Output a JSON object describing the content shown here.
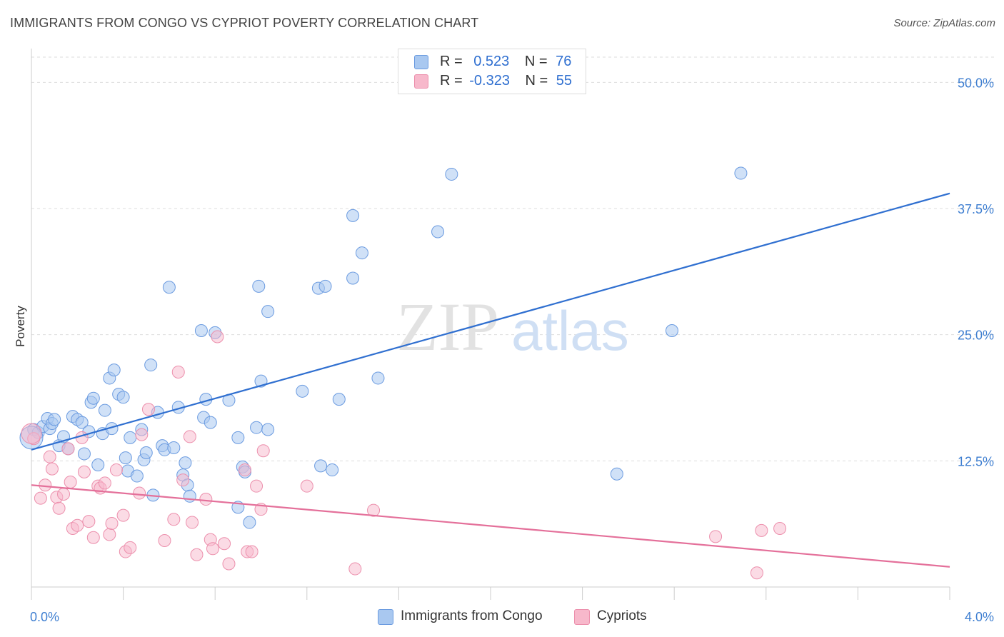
{
  "title": "IMMIGRANTS FROM CONGO VS CYPRIOT POVERTY CORRELATION CHART",
  "source": "Source: ZipAtlas.com",
  "watermark": {
    "zip": "ZIP",
    "atlas": "atlas"
  },
  "legend": {
    "rows": [
      {
        "r_label": "R =",
        "r_value": "0.523",
        "n_label": "N =",
        "n_value": "76"
      },
      {
        "r_label": "R =",
        "r_value": "-0.323",
        "n_label": "N =",
        "n_value": "55"
      }
    ]
  },
  "bottom_legend": {
    "series1": "Immigrants from Congo",
    "series2": "Cypriots"
  },
  "colors": {
    "congo_fill": "#a9c8f0",
    "congo_stroke": "#6b9be0",
    "congo_line": "#2f6fd0",
    "cypriot_fill": "#f7b8cb",
    "cypriot_stroke": "#ec8fac",
    "cypriot_line": "#e4709a",
    "tick_text": "#3f7fd1",
    "grid": "#dddddd"
  },
  "chart_data": {
    "type": "scatter",
    "title": "IMMIGRANTS FROM CONGO VS CYPRIOT POVERTY CORRELATION CHART",
    "xlabel": "",
    "ylabel": "Poverty",
    "xlim": [
      0,
      4.0
    ],
    "ylim": [
      0,
      52.5
    ],
    "x_tick_labels": [
      "0.0%",
      "4.0%"
    ],
    "y_ticks": [
      12.5,
      25.0,
      37.5,
      50.0
    ],
    "y_tick_labels": [
      "12.5%",
      "25.0%",
      "37.5%",
      "50.0%"
    ],
    "grid": "horizontal dashed",
    "legend_placement": "top-center and bottom",
    "series": [
      {
        "name": "Immigrants from Congo",
        "r": 0.523,
        "n": 76,
        "trend": [
          [
            0.0,
            13.6
          ],
          [
            4.0,
            39.0
          ]
        ],
        "points": [
          [
            0.01,
            15.6
          ],
          [
            0.03,
            15.3
          ],
          [
            0.05,
            15.9
          ],
          [
            0.07,
            16.7
          ],
          [
            0.08,
            15.7
          ],
          [
            0.09,
            16.2
          ],
          [
            0.1,
            16.6
          ],
          [
            0.12,
            14.0
          ],
          [
            0.14,
            14.9
          ],
          [
            0.16,
            13.7
          ],
          [
            0.18,
            16.9
          ],
          [
            0.2,
            16.6
          ],
          [
            0.22,
            16.3
          ],
          [
            0.23,
            13.2
          ],
          [
            0.25,
            15.4
          ],
          [
            0.26,
            18.3
          ],
          [
            0.27,
            18.7
          ],
          [
            0.29,
            12.1
          ],
          [
            0.31,
            15.2
          ],
          [
            0.32,
            17.5
          ],
          [
            0.34,
            20.7
          ],
          [
            0.35,
            15.7
          ],
          [
            0.36,
            21.5
          ],
          [
            0.38,
            19.1
          ],
          [
            0.4,
            18.8
          ],
          [
            0.41,
            12.8
          ],
          [
            0.42,
            11.5
          ],
          [
            0.43,
            14.8
          ],
          [
            0.46,
            11.0
          ],
          [
            0.48,
            15.6
          ],
          [
            0.49,
            12.6
          ],
          [
            0.5,
            13.3
          ],
          [
            0.52,
            22.0
          ],
          [
            0.53,
            9.1
          ],
          [
            0.55,
            17.3
          ],
          [
            0.57,
            14.0
          ],
          [
            0.58,
            13.6
          ],
          [
            0.6,
            29.7
          ],
          [
            0.62,
            13.8
          ],
          [
            0.64,
            17.8
          ],
          [
            0.66,
            11.1
          ],
          [
            0.67,
            12.3
          ],
          [
            0.68,
            10.1
          ],
          [
            0.69,
            9.0
          ],
          [
            0.74,
            25.4
          ],
          [
            0.75,
            16.8
          ],
          [
            0.76,
            18.6
          ],
          [
            0.78,
            16.3
          ],
          [
            0.8,
            25.2
          ],
          [
            0.86,
            18.5
          ],
          [
            0.9,
            14.8
          ],
          [
            0.9,
            7.9
          ],
          [
            0.92,
            11.9
          ],
          [
            0.93,
            11.4
          ],
          [
            0.95,
            6.4
          ],
          [
            0.98,
            15.8
          ],
          [
            0.99,
            29.8
          ],
          [
            1.0,
            20.4
          ],
          [
            1.03,
            15.6
          ],
          [
            1.03,
            27.3
          ],
          [
            1.18,
            19.4
          ],
          [
            1.25,
            29.6
          ],
          [
            1.28,
            29.8
          ],
          [
            1.26,
            12.0
          ],
          [
            1.31,
            11.6
          ],
          [
            1.34,
            18.6
          ],
          [
            1.4,
            30.6
          ],
          [
            1.4,
            36.8
          ],
          [
            1.44,
            33.1
          ],
          [
            1.51,
            20.7
          ],
          [
            1.77,
            35.2
          ],
          [
            1.83,
            40.9
          ],
          [
            2.55,
            11.2
          ],
          [
            2.79,
            25.4
          ],
          [
            3.09,
            41.0
          ],
          [
            0.0,
            14.8
          ]
        ]
      },
      {
        "name": "Cypriots",
        "r": -0.323,
        "n": 55,
        "trend": [
          [
            0.0,
            10.1
          ],
          [
            4.0,
            2.0
          ]
        ],
        "points": [
          [
            0.01,
            14.7
          ],
          [
            0.04,
            8.8
          ],
          [
            0.06,
            10.1
          ],
          [
            0.08,
            12.9
          ],
          [
            0.09,
            11.7
          ],
          [
            0.11,
            8.9
          ],
          [
            0.12,
            7.8
          ],
          [
            0.14,
            9.2
          ],
          [
            0.16,
            13.7
          ],
          [
            0.17,
            10.4
          ],
          [
            0.18,
            5.8
          ],
          [
            0.2,
            6.1
          ],
          [
            0.22,
            14.8
          ],
          [
            0.23,
            11.4
          ],
          [
            0.25,
            6.5
          ],
          [
            0.27,
            4.9
          ],
          [
            0.29,
            10.0
          ],
          [
            0.3,
            9.8
          ],
          [
            0.32,
            10.3
          ],
          [
            0.34,
            5.2
          ],
          [
            0.35,
            6.3
          ],
          [
            0.37,
            11.6
          ],
          [
            0.4,
            7.1
          ],
          [
            0.41,
            3.5
          ],
          [
            0.43,
            3.9
          ],
          [
            0.47,
            9.3
          ],
          [
            0.48,
            15.1
          ],
          [
            0.51,
            17.6
          ],
          [
            0.58,
            4.6
          ],
          [
            0.62,
            6.7
          ],
          [
            0.64,
            21.3
          ],
          [
            0.66,
            10.6
          ],
          [
            0.69,
            14.9
          ],
          [
            0.7,
            6.4
          ],
          [
            0.72,
            3.2
          ],
          [
            0.76,
            8.7
          ],
          [
            0.78,
            4.7
          ],
          [
            0.79,
            3.8
          ],
          [
            0.81,
            24.8
          ],
          [
            0.84,
            4.3
          ],
          [
            0.86,
            2.3
          ],
          [
            0.93,
            11.6
          ],
          [
            0.94,
            3.5
          ],
          [
            0.96,
            3.5
          ],
          [
            0.98,
            10.0
          ],
          [
            1.0,
            7.7
          ],
          [
            1.01,
            13.5
          ],
          [
            1.2,
            10.0
          ],
          [
            1.41,
            1.8
          ],
          [
            1.49,
            7.6
          ],
          [
            2.98,
            5.0
          ],
          [
            3.16,
            1.4
          ],
          [
            3.18,
            5.6
          ],
          [
            3.26,
            5.8
          ],
          [
            0.0,
            15.2
          ]
        ]
      }
    ]
  }
}
